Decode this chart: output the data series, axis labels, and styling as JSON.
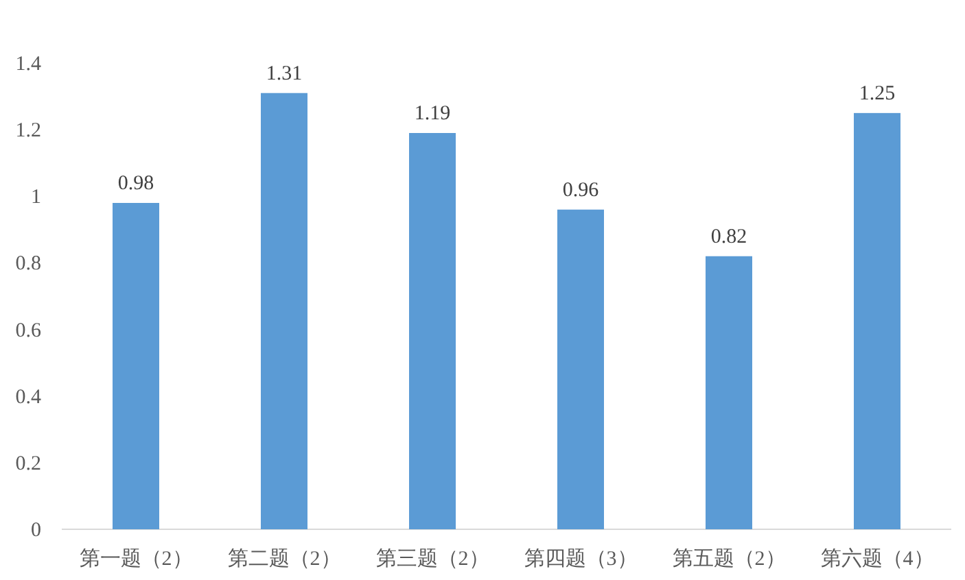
{
  "chart_data": {
    "type": "bar",
    "categories": [
      "第一题（2）",
      "第二题（2）",
      "第三题（2）",
      "第四题（3）",
      "第五题（2）",
      "第六题（4）"
    ],
    "values": [
      0.98,
      1.31,
      1.19,
      0.96,
      0.82,
      1.25
    ],
    "color": "#5b9bd5",
    "ylim": [
      0,
      1.4
    ],
    "yticks": [
      0,
      0.2,
      0.4,
      0.6,
      0.8,
      1,
      1.2,
      1.4
    ],
    "data_labels": true
  }
}
